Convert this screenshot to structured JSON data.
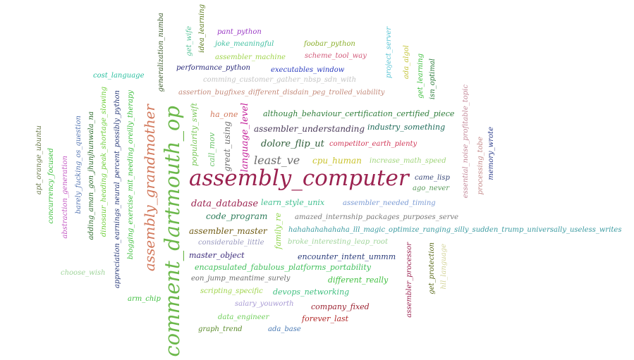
{
  "words": [
    {
      "text": "assembly_computer",
      "color": "#9b2250"
    },
    {
      "text": "comment_dartmouth_op",
      "color": "#6bb84a"
    },
    {
      "text": "assembly_grandmother",
      "color": "#d2785b"
    },
    {
      "text": "least_ve",
      "color": "#6b6b6b"
    },
    {
      "text": "language_level",
      "color": "#c4229a"
    },
    {
      "text": "dolore_flip_ut",
      "color": "#2f5d3a"
    },
    {
      "text": "cpu_human",
      "color": "#c8c22b"
    },
    {
      "text": "data_database",
      "color": "#9b2250"
    },
    {
      "text": "code_program",
      "color": "#2e7d5b"
    },
    {
      "text": "assembler_master",
      "color": "#6f5a12"
    },
    {
      "text": "great_using",
      "color": "#6b6b6b"
    },
    {
      "text": "call_mov",
      "color": "#6cc46c"
    },
    {
      "text": "popularity_swift",
      "color": "#7ac75a"
    },
    {
      "text": "ha_one",
      "color": "#d2785b"
    },
    {
      "text": "assembler_understanding",
      "color": "#4b3b5a"
    },
    {
      "text": "although_behaviour_certification_certified_piece",
      "color": "#2e7d3a"
    },
    {
      "text": "industry_something",
      "color": "#1f6b5a"
    },
    {
      "text": "competitor_earth_plenty",
      "color": "#d23a5a"
    },
    {
      "text": "increase_math_speed",
      "color": "#9fd47a"
    },
    {
      "text": "learn_style_unix",
      "color": "#3fbf8f"
    },
    {
      "text": "assembler_needed_timing",
      "color": "#7a9ad4"
    },
    {
      "text": "amazed_internship_packages_purposes_serve",
      "color": "#7a7a7a"
    },
    {
      "text": "hahahahahahaha_lll_magic_optimize_ranging_silly_sudden_trump_universally_useless_writes",
      "color": "#3a9aa0"
    },
    {
      "text": "considerable_little",
      "color": "#9a9abf"
    },
    {
      "text": "family_re",
      "color": "#8fd44a"
    },
    {
      "text": "broke_interesting_leap_root",
      "color": "#9fd49a"
    },
    {
      "text": "master_object",
      "color": "#3b2a7a"
    },
    {
      "text": "encounter_intent_ummm",
      "color": "#2a3b7a"
    },
    {
      "text": "encapsulated_fabulous_platforms_portability",
      "color": "#3fbf5a"
    },
    {
      "text": "eon_jump_meantime_surely",
      "color": "#6b6b6b"
    },
    {
      "text": "different_really",
      "color": "#3fbf3f"
    },
    {
      "text": "scripting_specific",
      "color": "#9fd44a"
    },
    {
      "text": "devops_networking",
      "color": "#3fbf7f"
    },
    {
      "text": "salary_youworth",
      "color": "#a89ad4"
    },
    {
      "text": "company_fixed",
      "color": "#9b2230"
    },
    {
      "text": "data_engineer",
      "color": "#6fcf5a"
    },
    {
      "text": "forever_last",
      "color": "#b22a2a"
    },
    {
      "text": "graph_trend",
      "color": "#5a8a2a"
    },
    {
      "text": "ada_base",
      "color": "#4a7ab4"
    },
    {
      "text": "arm_chip",
      "color": "#3fbf3f"
    },
    {
      "text": "choose_wish",
      "color": "#9fd49a"
    },
    {
      "text": "came_lisp",
      "color": "#3b4a7a"
    },
    {
      "text": "ago_never",
      "color": "#5a9a5a"
    },
    {
      "text": "assembler_processor",
      "color": "#9b2250"
    },
    {
      "text": "get_protection",
      "color": "#5a6a1a"
    },
    {
      "text": "hll_language",
      "color": "#d4d49a"
    },
    {
      "text": "essential_noise_profitable_topic",
      "color": "#c48a9a"
    },
    {
      "text": "processing_tobe",
      "color": "#c48a8a"
    },
    {
      "text": "memory_wrote",
      "color": "#2a3b8a"
    },
    {
      "text": "pant_python",
      "color": "#9a3ac4"
    },
    {
      "text": "joke_meaningful",
      "color": "#3fbfa0"
    },
    {
      "text": "foobar_python",
      "color": "#8aaf2a"
    },
    {
      "text": "assembler_machine",
      "color": "#9fd44a"
    },
    {
      "text": "scheme_tool_way",
      "color": "#d25a7a"
    },
    {
      "text": "performance_python",
      "color": "#2a2a7a"
    },
    {
      "text": "executables_window",
      "color": "#2a3bbf"
    },
    {
      "text": "cost_language",
      "color": "#2abf9f"
    },
    {
      "text": "comming_customer_gather_nbsp_sdn_with",
      "color": "#c4c4c4"
    },
    {
      "text": "assertion_bugfixes_different_disdain_peg_trolled_viability",
      "color": "#c48a7a"
    },
    {
      "text": "generalization_numba",
      "color": "#3a5a2a"
    },
    {
      "text": "get_wife",
      "color": "#5ac49a"
    },
    {
      "text": "idea_learning",
      "color": "#5a7a1a"
    },
    {
      "text": "project_server",
      "color": "#5ac4d4"
    },
    {
      "text": "ada_algol",
      "color": "#c4c43a"
    },
    {
      "text": "get_learning",
      "color": "#3fbf3f"
    },
    {
      "text": "isn_optimal",
      "color": "#2a7a3a"
    },
    {
      "text": "apt_orange_ubuntu",
      "color": "#6b7a4a"
    },
    {
      "text": "concurrency_focused",
      "color": "#3fbf3f"
    },
    {
      "text": "abstraction_generation",
      "color": "#c45ac4"
    },
    {
      "text": "barely_fucking_os_question",
      "color": "#5a7ab4"
    },
    {
      "text": "adding_aman_gon_jhunjhunwala_na",
      "color": "#2a6a2a"
    },
    {
      "text": "dinosaur_heading_peak_shortage_slowing",
      "color": "#6fcf3a"
    },
    {
      "text": "appreciation_earnings_neural_percent_possibly_python",
      "color": "#2a3b7a"
    },
    {
      "text": "blogging_exercise_mit_needing_oreilly_therapy",
      "color": "#3fbf3f"
    }
  ]
}
